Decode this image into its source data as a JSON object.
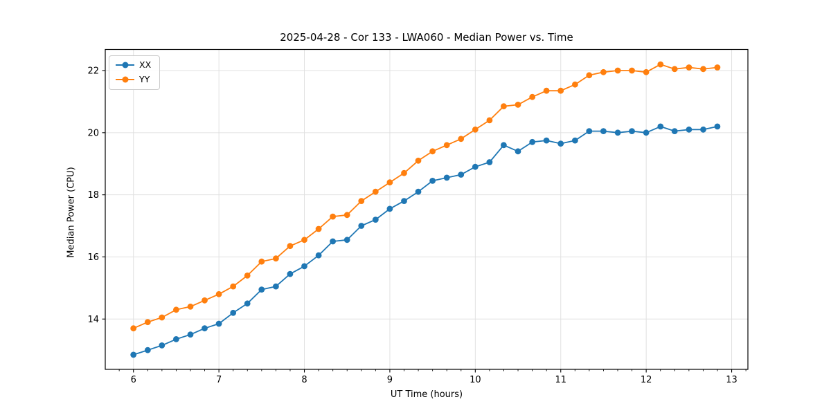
{
  "chart_data": {
    "type": "line",
    "title": "2025-04-28 - Cor 133 - LWA060 - Median Power vs. Time",
    "xlabel": "UT Time (hours)",
    "ylabel": "Median Power (CPU)",
    "xlim": [
      5.67,
      13.19
    ],
    "ylim": [
      12.38,
      22.68
    ],
    "x_ticks": [
      6,
      7,
      8,
      9,
      10,
      11,
      12,
      13
    ],
    "y_ticks": [
      14,
      16,
      18,
      20,
      22
    ],
    "x_minor_tick_interval_hours": 0.1667,
    "grid": true,
    "grid_color": "#e0e0e0",
    "spine_color": "#000000",
    "legend_position": "upper-left",
    "x": [
      6.0,
      6.167,
      6.333,
      6.5,
      6.667,
      6.833,
      7.0,
      7.167,
      7.333,
      7.5,
      7.667,
      7.833,
      8.0,
      8.167,
      8.333,
      8.5,
      8.667,
      8.833,
      9.0,
      9.167,
      9.333,
      9.5,
      9.667,
      9.833,
      10.0,
      10.167,
      10.333,
      10.5,
      10.667,
      10.833,
      11.0,
      11.167,
      11.333,
      11.5,
      11.667,
      11.833,
      12.0,
      12.167,
      12.333,
      12.5,
      12.667,
      12.833
    ],
    "series": [
      {
        "name": "XX",
        "color": "#1f77b4",
        "values": [
          12.85,
          13.0,
          13.15,
          13.35,
          13.5,
          13.7,
          13.85,
          14.2,
          14.5,
          14.95,
          15.05,
          15.45,
          15.7,
          16.05,
          16.5,
          16.55,
          17.0,
          17.2,
          17.55,
          17.8,
          18.1,
          18.45,
          18.55,
          18.65,
          18.9,
          19.05,
          19.6,
          19.4,
          19.7,
          19.75,
          19.65,
          19.75,
          20.05,
          20.05,
          20.0,
          20.05,
          20.0,
          20.2,
          20.05,
          20.1,
          20.1,
          20.2
        ]
      },
      {
        "name": "YY",
        "color": "#ff7f0e",
        "values": [
          13.7,
          13.9,
          14.05,
          14.3,
          14.4,
          14.6,
          14.8,
          15.05,
          15.4,
          15.85,
          15.95,
          16.35,
          16.55,
          16.9,
          17.3,
          17.35,
          17.8,
          18.1,
          18.4,
          18.7,
          19.1,
          19.4,
          19.6,
          19.8,
          20.1,
          20.4,
          20.85,
          20.9,
          21.15,
          21.35,
          21.35,
          21.55,
          21.85,
          21.95,
          22.0,
          22.0,
          21.95,
          22.2,
          22.05,
          22.1,
          22.05,
          22.1
        ]
      }
    ]
  }
}
